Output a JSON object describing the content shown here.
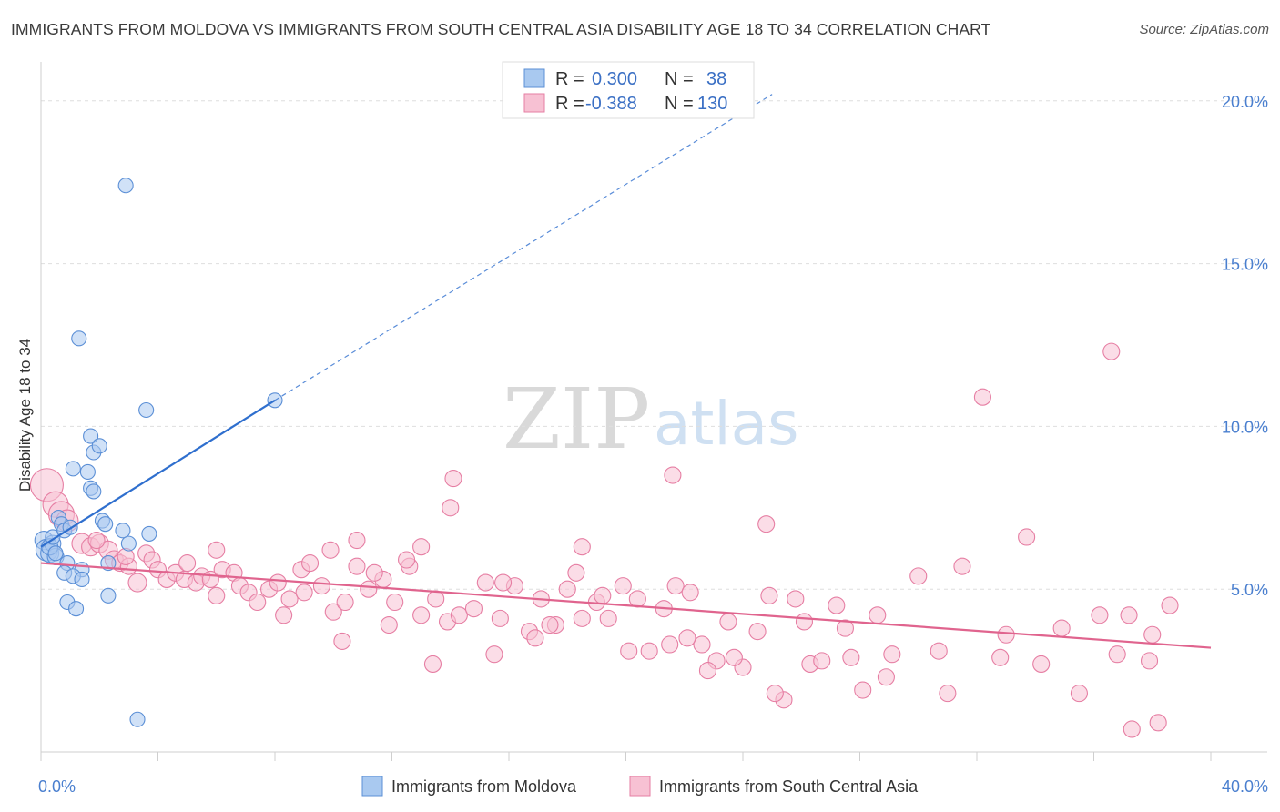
{
  "header": {
    "title": "IMMIGRANTS FROM MOLDOVA VS IMMIGRANTS FROM SOUTH CENTRAL ASIA DISABILITY AGE 18 TO 34 CORRELATION CHART",
    "source": "Source: ZipAtlas.com"
  },
  "watermark": {
    "zip": "ZIP",
    "atlas": "atlas"
  },
  "legend": {
    "r_label": "R =",
    "n_label": "N =",
    "rows": [
      {
        "r": "0.300",
        "n": "38",
        "color": "#a9c9f0",
        "stroke": "#5b8fd6"
      },
      {
        "r": "-0.388",
        "n": "130",
        "color": "#f7c1d3",
        "stroke": "#e67ea3"
      }
    ]
  },
  "chart_data": {
    "type": "scatter",
    "title": "IMMIGRANTS FROM MOLDOVA VS IMMIGRANTS FROM SOUTH CENTRAL ASIA DISABILITY AGE 18 TO 34 CORRELATION CHART",
    "xlabel": "",
    "ylabel": "Disability Age 18 to 34",
    "xlim": [
      0,
      40
    ],
    "ylim": [
      0,
      21
    ],
    "x_ticks": [
      "0.0%",
      "40.0%"
    ],
    "y_ticks": [
      {
        "value": 5,
        "label": "5.0%"
      },
      {
        "value": 10,
        "label": "10.0%"
      },
      {
        "value": 15,
        "label": "15.0%"
      },
      {
        "value": 20,
        "label": "20.0%"
      }
    ],
    "grid": true,
    "legend_position": "bottom",
    "series": [
      {
        "name": "Immigrants from Moldova",
        "color": "#a9c9f0",
        "stroke": "#5b8fd6",
        "trend": {
          "x": [
            0,
            8
          ],
          "y": [
            6.3,
            10.8
          ],
          "extend_to": [
            25,
            20.2
          ],
          "color": "#2f6fce"
        },
        "points": [
          [
            0.1,
            6.5,
            10
          ],
          [
            0.2,
            6.2,
            12
          ],
          [
            0.3,
            6.1,
            10
          ],
          [
            0.4,
            6.4,
            9
          ],
          [
            0.5,
            6.0,
            9
          ],
          [
            0.3,
            6.3,
            9
          ],
          [
            0.4,
            6.6,
            8
          ],
          [
            0.6,
            7.2,
            8
          ],
          [
            0.7,
            7.0,
            8
          ],
          [
            0.8,
            6.8,
            8
          ],
          [
            1.0,
            6.9,
            8
          ],
          [
            1.1,
            8.7,
            8
          ],
          [
            1.6,
            8.6,
            8
          ],
          [
            1.7,
            8.1,
            8
          ],
          [
            1.8,
            8.0,
            8
          ],
          [
            1.7,
            9.7,
            8
          ],
          [
            1.8,
            9.2,
            8
          ],
          [
            2.0,
            9.4,
            8
          ],
          [
            1.3,
            12.7,
            8
          ],
          [
            2.9,
            17.4,
            8
          ],
          [
            3.6,
            10.5,
            8
          ],
          [
            8.0,
            10.8,
            8
          ],
          [
            2.1,
            7.1,
            8
          ],
          [
            2.2,
            7.0,
            8
          ],
          [
            2.8,
            6.8,
            8
          ],
          [
            3.7,
            6.7,
            8
          ],
          [
            3.0,
            6.4,
            8
          ],
          [
            2.3,
            5.8,
            8
          ],
          [
            1.4,
            5.6,
            8
          ],
          [
            0.9,
            5.8,
            8
          ],
          [
            0.8,
            5.5,
            8
          ],
          [
            1.1,
            5.4,
            8
          ],
          [
            1.4,
            5.3,
            8
          ],
          [
            0.9,
            4.6,
            8
          ],
          [
            1.2,
            4.4,
            8
          ],
          [
            2.3,
            4.8,
            8
          ],
          [
            3.3,
            1.0,
            8
          ],
          [
            0.5,
            6.1,
            8
          ]
        ]
      },
      {
        "name": "Immigrants from South Central Asia",
        "color": "#f7c1d3",
        "stroke": "#e67ea3",
        "trend": {
          "x": [
            0,
            40
          ],
          "y": [
            5.8,
            3.2
          ],
          "color": "#e0648e"
        },
        "points": [
          [
            0.2,
            8.2,
            18
          ],
          [
            0.5,
            7.6,
            14
          ],
          [
            0.7,
            7.3,
            14
          ],
          [
            0.9,
            7.1,
            12
          ],
          [
            1.4,
            6.4,
            11
          ],
          [
            1.7,
            6.3,
            10
          ],
          [
            2.0,
            6.4,
            10
          ],
          [
            2.3,
            6.2,
            10
          ],
          [
            2.5,
            5.9,
            10
          ],
          [
            2.7,
            5.8,
            9
          ],
          [
            3.0,
            5.7,
            9
          ],
          [
            3.3,
            5.2,
            10
          ],
          [
            3.6,
            6.1,
            9
          ],
          [
            3.8,
            5.9,
            9
          ],
          [
            4.0,
            5.6,
            9
          ],
          [
            4.3,
            5.3,
            9
          ],
          [
            4.6,
            5.5,
            9
          ],
          [
            4.9,
            5.3,
            9
          ],
          [
            5.0,
            5.8,
            9
          ],
          [
            5.3,
            5.2,
            9
          ],
          [
            5.5,
            5.4,
            9
          ],
          [
            5.8,
            5.3,
            9
          ],
          [
            6.0,
            4.8,
            9
          ],
          [
            6.2,
            5.6,
            9
          ],
          [
            6.6,
            5.5,
            9
          ],
          [
            6.8,
            5.1,
            9
          ],
          [
            7.1,
            4.9,
            9
          ],
          [
            7.4,
            4.6,
            9
          ],
          [
            7.8,
            5.0,
            9
          ],
          [
            8.1,
            5.2,
            9
          ],
          [
            8.5,
            4.7,
            9
          ],
          [
            8.9,
            5.6,
            9
          ],
          [
            9.2,
            5.8,
            9
          ],
          [
            9.6,
            5.1,
            9
          ],
          [
            10.0,
            4.3,
            9
          ],
          [
            10.4,
            4.6,
            9
          ],
          [
            10.8,
            5.7,
            9
          ],
          [
            11.2,
            5.0,
            9
          ],
          [
            11.7,
            5.3,
            9
          ],
          [
            12.1,
            4.6,
            9
          ],
          [
            12.6,
            5.7,
            9
          ],
          [
            13.0,
            4.2,
            9
          ],
          [
            13.5,
            4.7,
            9
          ],
          [
            13.9,
            4.0,
            9
          ],
          [
            14.3,
            4.2,
            9
          ],
          [
            14.8,
            4.4,
            9
          ],
          [
            15.2,
            5.2,
            9
          ],
          [
            15.7,
            4.1,
            9
          ],
          [
            16.2,
            5.1,
            9
          ],
          [
            16.7,
            3.7,
            9
          ],
          [
            17.1,
            4.7,
            9
          ],
          [
            17.6,
            3.9,
            9
          ],
          [
            18.0,
            5.0,
            9
          ],
          [
            18.5,
            4.1,
            9
          ],
          [
            19.0,
            4.6,
            9
          ],
          [
            19.4,
            4.1,
            9
          ],
          [
            19.9,
            5.1,
            9
          ],
          [
            20.4,
            4.7,
            9
          ],
          [
            20.8,
            3.1,
            9
          ],
          [
            21.3,
            4.4,
            9
          ],
          [
            21.7,
            5.1,
            9
          ],
          [
            22.2,
            4.9,
            9
          ],
          [
            22.6,
            3.3,
            9
          ],
          [
            23.1,
            2.8,
            9
          ],
          [
            23.5,
            4.0,
            9
          ],
          [
            24.0,
            2.6,
            9
          ],
          [
            24.5,
            3.7,
            9
          ],
          [
            24.9,
            4.8,
            9
          ],
          [
            25.4,
            1.6,
            9
          ],
          [
            25.8,
            4.7,
            9
          ],
          [
            26.3,
            2.7,
            9
          ],
          [
            26.7,
            2.8,
            9
          ],
          [
            27.2,
            4.5,
            9
          ],
          [
            27.7,
            2.9,
            9
          ],
          [
            28.1,
            1.9,
            9
          ],
          [
            28.6,
            4.2,
            9
          ],
          [
            29.1,
            3.0,
            9
          ],
          [
            30.0,
            5.4,
            9
          ],
          [
            31.0,
            1.8,
            9
          ],
          [
            31.5,
            5.7,
            9
          ],
          [
            32.2,
            10.9,
            9
          ],
          [
            33.0,
            3.6,
            9
          ],
          [
            34.2,
            2.7,
            9
          ],
          [
            35.5,
            1.8,
            9
          ],
          [
            36.2,
            4.2,
            9
          ],
          [
            36.6,
            12.3,
            9
          ],
          [
            37.2,
            4.2,
            9
          ],
          [
            38.0,
            3.6,
            9
          ],
          [
            38.6,
            4.5,
            9
          ],
          [
            37.9,
            2.8,
            9
          ],
          [
            38.2,
            0.9,
            9
          ],
          [
            37.3,
            0.7,
            9
          ],
          [
            14.1,
            8.4,
            9
          ],
          [
            14.0,
            7.5,
            9
          ],
          [
            21.6,
            8.5,
            9
          ],
          [
            24.8,
            7.0,
            9
          ],
          [
            33.7,
            6.6,
            9
          ],
          [
            10.8,
            6.5,
            9
          ],
          [
            18.5,
            6.3,
            9
          ],
          [
            13.0,
            6.3,
            9
          ],
          [
            6.0,
            6.2,
            9
          ],
          [
            1.9,
            6.5,
            9
          ],
          [
            2.9,
            6.0,
            9
          ],
          [
            9.9,
            6.2,
            9
          ],
          [
            11.4,
            5.5,
            9
          ],
          [
            12.5,
            5.9,
            9
          ],
          [
            15.8,
            5.2,
            9
          ],
          [
            16.9,
            3.5,
            9
          ],
          [
            18.3,
            5.5,
            9
          ],
          [
            19.2,
            4.8,
            9
          ],
          [
            21.5,
            3.3,
            9
          ],
          [
            22.1,
            3.5,
            9
          ],
          [
            23.7,
            2.9,
            9
          ],
          [
            26.1,
            4.0,
            9
          ],
          [
            27.5,
            3.8,
            9
          ],
          [
            28.9,
            2.3,
            9
          ],
          [
            30.7,
            3.1,
            9
          ],
          [
            32.8,
            2.9,
            9
          ],
          [
            34.9,
            3.8,
            9
          ],
          [
            36.8,
            3.0,
            9
          ],
          [
            8.3,
            4.2,
            9
          ],
          [
            9.0,
            4.9,
            9
          ],
          [
            10.3,
            3.4,
            9
          ],
          [
            11.9,
            3.9,
            9
          ],
          [
            13.4,
            2.7,
            9
          ],
          [
            15.5,
            3.0,
            9
          ],
          [
            17.4,
            3.9,
            9
          ],
          [
            20.1,
            3.1,
            9
          ],
          [
            22.8,
            2.5,
            9
          ],
          [
            25.1,
            1.8,
            9
          ]
        ]
      }
    ]
  }
}
